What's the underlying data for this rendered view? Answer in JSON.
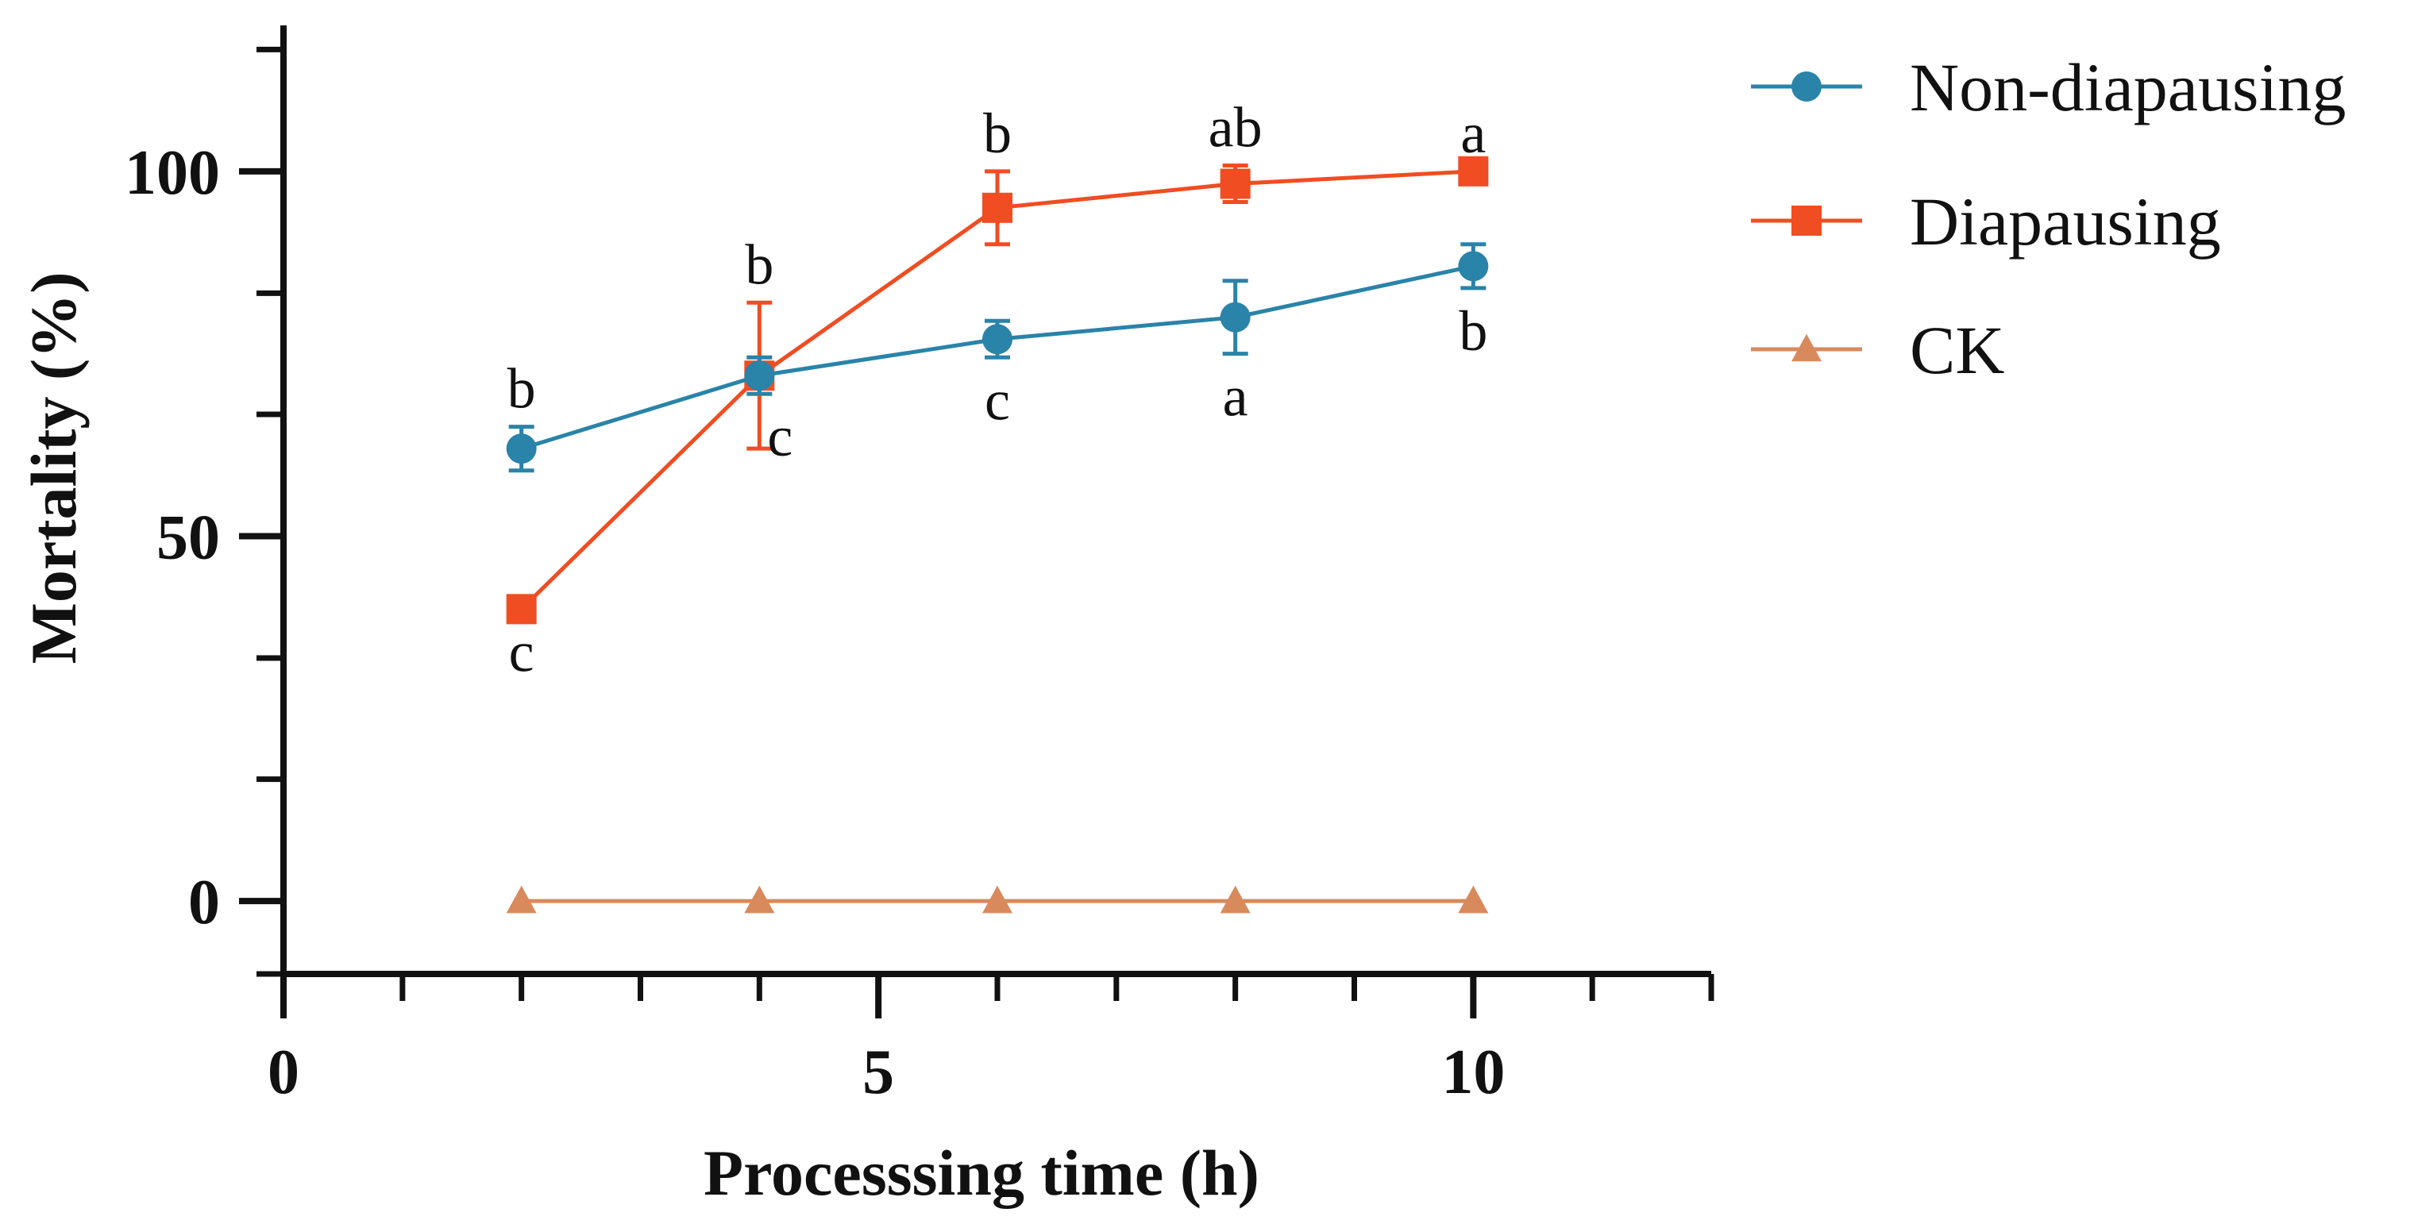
{
  "chart_data": {
    "type": "line",
    "title": "",
    "xlabel": "Processsing time (h)",
    "ylabel": "Mortality (%)",
    "xlim": [
      0,
      12
    ],
    "ylim": [
      -10,
      120
    ],
    "x_major_ticks": [
      0,
      5,
      10
    ],
    "x_tick_labels": [
      "0",
      "5",
      "10"
    ],
    "x_minor_ticks": [
      1,
      2,
      3,
      4,
      6,
      7,
      8,
      9,
      11,
      12
    ],
    "y_major_ticks": [
      0,
      50,
      100
    ],
    "y_tick_labels": [
      "0",
      "50",
      "100"
    ],
    "y_minor_ticks": [
      -10,
      16.7,
      33.3,
      66.7,
      83.3,
      116.7
    ],
    "grid": false,
    "legend_position": "top-right outside",
    "series": [
      {
        "name": "Non-diapausing",
        "color": "#2a83a8",
        "marker": "circle",
        "x": [
          2,
          4,
          6,
          8,
          10
        ],
        "values": [
          62,
          72,
          77,
          80,
          87
        ],
        "errors": [
          3,
          2.5,
          2.5,
          5,
          3
        ],
        "letters": [
          "b",
          "c",
          "c",
          "a",
          "b"
        ],
        "letter_side": [
          "above",
          "below",
          "below",
          "below",
          "below"
        ]
      },
      {
        "name": "Diapausing",
        "color": "#f04d22",
        "marker": "square",
        "x": [
          2,
          4,
          6,
          8,
          10
        ],
        "values": [
          40,
          72,
          95,
          98.3,
          100
        ],
        "errors": [
          0,
          10,
          5,
          2.5,
          0
        ],
        "letters": [
          "c",
          "b",
          "b",
          "ab",
          "a"
        ],
        "letter_side": [
          "below",
          "above",
          "above",
          "above",
          "above"
        ]
      },
      {
        "name": "CK",
        "color": "#d88a5c",
        "marker": "triangle",
        "x": [
          2,
          4,
          6,
          8,
          10
        ],
        "values": [
          0,
          0,
          0,
          0,
          0
        ],
        "errors": [
          0,
          0,
          0,
          0,
          0
        ],
        "letters": [],
        "letter_side": []
      }
    ]
  }
}
